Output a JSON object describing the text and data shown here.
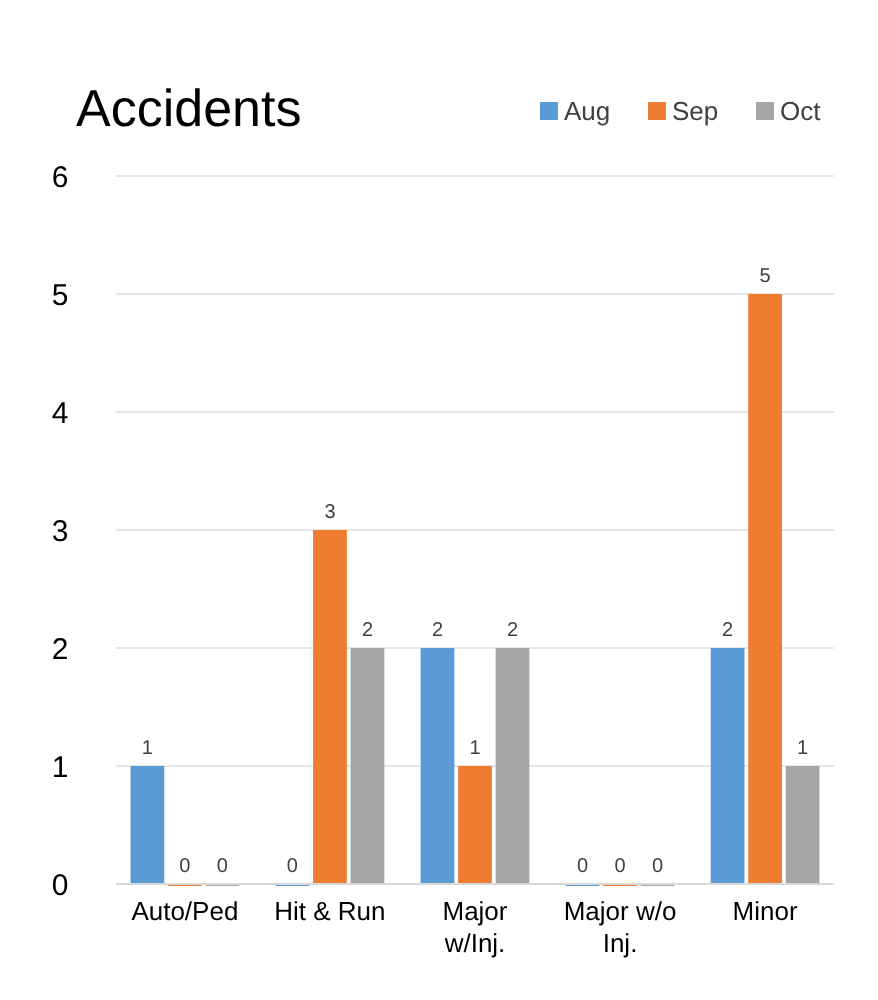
{
  "chart_data": {
    "type": "bar",
    "title": "Accidents",
    "categories": [
      "Auto/Ped",
      "Hit & Run",
      "Major w/Inj.",
      "Major w/o Inj.",
      "Minor"
    ],
    "series": [
      {
        "name": "Aug",
        "color": "#5b9bd5",
        "values": [
          1,
          0,
          2,
          0,
          2
        ]
      },
      {
        "name": "Sep",
        "color": "#ed7d31",
        "values": [
          0,
          3,
          1,
          0,
          5
        ]
      },
      {
        "name": "Oct",
        "color": "#a5a5a5",
        "values": [
          0,
          2,
          2,
          0,
          1
        ]
      }
    ],
    "ylim": [
      0,
      6
    ],
    "yticks": [
      0,
      1,
      2,
      3,
      4,
      5,
      6
    ],
    "grid": "y",
    "legend": "top right",
    "data_labels": true
  }
}
